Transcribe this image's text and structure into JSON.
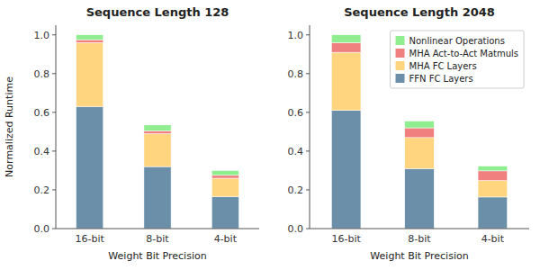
{
  "chart_data": [
    {
      "type": "bar",
      "stacked": true,
      "title": "Sequence Length 128",
      "xlabel": "Weight Bit Precision",
      "ylabel": "Normalized Runtime",
      "categories": [
        "16-bit",
        "8-bit",
        "4-bit"
      ],
      "series": [
        {
          "color": "#6B8FA8",
          "values": [
            0.63,
            0.32,
            0.165
          ]
        },
        {
          "color": "#FFD580",
          "values": [
            0.33,
            0.17,
            0.095
          ]
        },
        {
          "color": "#F08080",
          "values": [
            0.015,
            0.015,
            0.015
          ]
        },
        {
          "color": "#90EE90",
          "values": [
            0.025,
            0.03,
            0.025
          ]
        }
      ],
      "ylim": [
        0,
        1.05
      ],
      "yticks": [
        {
          "value": 0.0,
          "label": "0.0"
        },
        0.2,
        0.4,
        0.6,
        0.8,
        {
          "value": 1.0,
          "label": "1.0"
        }
      ]
    },
    {
      "type": "bar",
      "stacked": true,
      "title": "Sequence Length 2048",
      "xlabel": "Weight Bit Precision",
      "categories": [
        "16-bit",
        "8-bit",
        "4-bit"
      ],
      "series": [
        {
          "name": "FFN FC Layers",
          "color": "#6B8FA8",
          "values": [
            0.61,
            0.31,
            0.163
          ]
        },
        {
          "name": "MHA FC Layers",
          "color": "#FFD580",
          "values": [
            0.3,
            0.16,
            0.085
          ]
        },
        {
          "name": "MHA Act-to-Act Matmuls",
          "color": "#F08080",
          "values": [
            0.05,
            0.05,
            0.05
          ]
        },
        {
          "name": "Nonlinear Operations",
          "color": "#90EE90",
          "values": [
            0.04,
            0.035,
            0.025
          ]
        }
      ],
      "ylim": [
        0,
        1.05
      ],
      "yticks": [
        {
          "value": 0.0,
          "label": "0.0"
        },
        0.2,
        0.4,
        0.6,
        0.8,
        {
          "value": 1.0,
          "label": "1.0"
        }
      ],
      "legend": "upper right"
    }
  ]
}
